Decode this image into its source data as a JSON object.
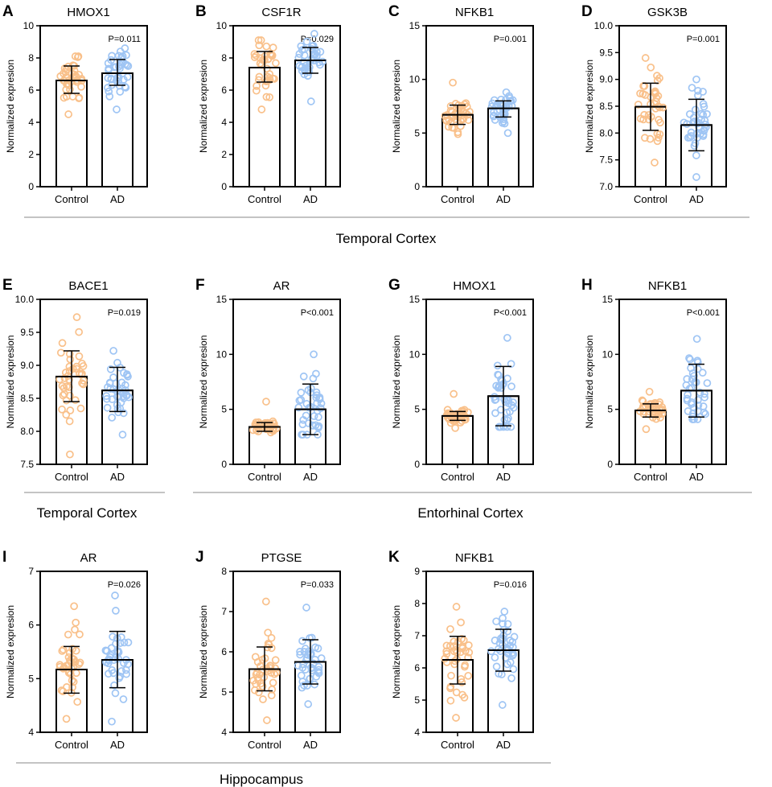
{
  "colors": {
    "control": "#f9c08a",
    "ad": "#9fc5f4",
    "axis": "#000000"
  },
  "groups": [
    "Control",
    "AD"
  ],
  "ylabel": "Normalized expresion",
  "sections": [
    {
      "label": "Temporal Cortex"
    },
    {
      "label": "Temporal Cortex"
    },
    {
      "label": "Entorhinal Cortex"
    },
    {
      "label": "Hippocampus"
    }
  ],
  "chart_data": [
    {
      "panel": "A",
      "type": "bar",
      "title": "HMOX1",
      "pvalue": "P=0.011",
      "ylim": [
        0,
        10
      ],
      "yticks": [
        "0",
        "2",
        "4",
        "6",
        "8",
        "10"
      ],
      "series": [
        {
          "name": "Control",
          "mean": 6.6,
          "sd": [
            5.8,
            7.5
          ],
          "range": [
            4.5,
            8.1
          ]
        },
        {
          "name": "AD",
          "mean": 7.05,
          "sd": [
            6.3,
            7.9
          ],
          "range": [
            4.8,
            8.6
          ]
        }
      ]
    },
    {
      "panel": "B",
      "type": "bar",
      "title": "CSF1R",
      "pvalue": "P=0.029",
      "ylim": [
        0,
        10
      ],
      "yticks": [
        "0",
        "2",
        "4",
        "6",
        "8",
        "10"
      ],
      "series": [
        {
          "name": "Control",
          "mean": 7.4,
          "sd": [
            6.5,
            8.4
          ],
          "range": [
            4.8,
            9.1
          ]
        },
        {
          "name": "AD",
          "mean": 7.85,
          "sd": [
            7.05,
            8.65
          ],
          "range": [
            5.3,
            9.5
          ]
        }
      ]
    },
    {
      "panel": "C",
      "type": "bar",
      "title": "NFKB1",
      "pvalue": "P=0.001",
      "ylim": [
        0,
        15
      ],
      "yticks": [
        "0",
        "5",
        "10",
        "15"
      ],
      "series": [
        {
          "name": "Control",
          "mean": 6.7,
          "sd": [
            5.8,
            7.6
          ],
          "range": [
            4.9,
            9.7
          ]
        },
        {
          "name": "AD",
          "mean": 7.3,
          "sd": [
            6.5,
            8.0
          ],
          "range": [
            5.0,
            8.8
          ]
        }
      ]
    },
    {
      "panel": "D",
      "type": "bar",
      "title": "GSK3B",
      "pvalue": "P=0.001",
      "ylim": [
        7,
        10
      ],
      "yticks": [
        "7.0",
        "7.5",
        "8.0",
        "8.5",
        "9.0",
        "9.5",
        "10.0"
      ],
      "series": [
        {
          "name": "Control",
          "mean": 8.49,
          "sd": [
            8.05,
            8.93
          ],
          "range": [
            7.45,
            9.4
          ]
        },
        {
          "name": "AD",
          "mean": 8.15,
          "sd": [
            7.67,
            8.63
          ],
          "range": [
            7.18,
            9.0
          ]
        }
      ]
    },
    {
      "panel": "E",
      "type": "bar",
      "title": "BACE1",
      "pvalue": "P=0.019",
      "ylim": [
        7.5,
        10
      ],
      "yticks": [
        "7.5",
        "8.0",
        "8.5",
        "9.0",
        "9.5",
        "10.0"
      ],
      "series": [
        {
          "name": "Control",
          "mean": 8.83,
          "sd": [
            8.45,
            9.22
          ],
          "range": [
            7.65,
            9.73
          ]
        },
        {
          "name": "AD",
          "mean": 8.62,
          "sd": [
            8.3,
            8.97
          ],
          "range": [
            7.95,
            9.22
          ]
        }
      ]
    },
    {
      "panel": "F",
      "type": "bar",
      "title": "AR",
      "pvalue": "P<0.001",
      "ylim": [
        0,
        15
      ],
      "yticks": [
        "0",
        "5",
        "10",
        "15"
      ],
      "series": [
        {
          "name": "Control",
          "mean": 3.4,
          "sd": [
            3.0,
            3.8
          ],
          "range": [
            2.9,
            5.7
          ]
        },
        {
          "name": "AD",
          "mean": 5.0,
          "sd": [
            2.7,
            7.3
          ],
          "range": [
            2.7,
            10.0
          ]
        }
      ]
    },
    {
      "panel": "G",
      "type": "bar",
      "title": "HMOX1",
      "pvalue": "P<0.001",
      "ylim": [
        0,
        15
      ],
      "yticks": [
        "0",
        "5",
        "10",
        "15"
      ],
      "series": [
        {
          "name": "Control",
          "mean": 4.4,
          "sd": [
            4.0,
            4.8
          ],
          "range": [
            3.3,
            6.4
          ]
        },
        {
          "name": "AD",
          "mean": 6.2,
          "sd": [
            3.5,
            8.9
          ],
          "range": [
            3.4,
            11.5
          ]
        }
      ]
    },
    {
      "panel": "H",
      "type": "bar",
      "title": "NFKB1",
      "pvalue": "P<0.001",
      "ylim": [
        0,
        15
      ],
      "yticks": [
        "0",
        "5",
        "10",
        "15"
      ],
      "series": [
        {
          "name": "Control",
          "mean": 4.9,
          "sd": [
            4.3,
            5.5
          ],
          "range": [
            3.2,
            6.6
          ]
        },
        {
          "name": "AD",
          "mean": 6.7,
          "sd": [
            4.3,
            9.1
          ],
          "range": [
            4.1,
            11.4
          ]
        }
      ]
    },
    {
      "panel": "I",
      "type": "bar",
      "title": "AR",
      "pvalue": "P=0.026",
      "ylim": [
        4,
        7
      ],
      "yticks": [
        "4",
        "5",
        "6",
        "7"
      ],
      "series": [
        {
          "name": "Control",
          "mean": 5.17,
          "sd": [
            4.73,
            5.6
          ],
          "range": [
            4.25,
            6.35
          ]
        },
        {
          "name": "AD",
          "mean": 5.35,
          "sd": [
            4.83,
            5.88
          ],
          "range": [
            4.2,
            6.55
          ]
        }
      ]
    },
    {
      "panel": "J",
      "type": "bar",
      "title": "PTGSE",
      "pvalue": "P=0.033",
      "ylim": [
        4,
        8
      ],
      "yticks": [
        "4",
        "5",
        "6",
        "7",
        "8"
      ],
      "series": [
        {
          "name": "Control",
          "mean": 5.57,
          "sd": [
            5.03,
            6.12
          ],
          "range": [
            4.3,
            7.25
          ]
        },
        {
          "name": "AD",
          "mean": 5.75,
          "sd": [
            5.2,
            6.3
          ],
          "range": [
            4.7,
            7.1
          ]
        }
      ]
    },
    {
      "panel": "K",
      "type": "bar",
      "title": "NFKB1",
      "pvalue": "P=0.016",
      "ylim": [
        4,
        9
      ],
      "yticks": [
        "4",
        "5",
        "6",
        "7",
        "8",
        "9"
      ],
      "series": [
        {
          "name": "Control",
          "mean": 6.25,
          "sd": [
            5.5,
            6.98
          ],
          "range": [
            4.45,
            7.9
          ]
        },
        {
          "name": "AD",
          "mean": 6.55,
          "sd": [
            5.9,
            7.2
          ],
          "range": [
            4.85,
            7.75
          ]
        }
      ]
    }
  ]
}
